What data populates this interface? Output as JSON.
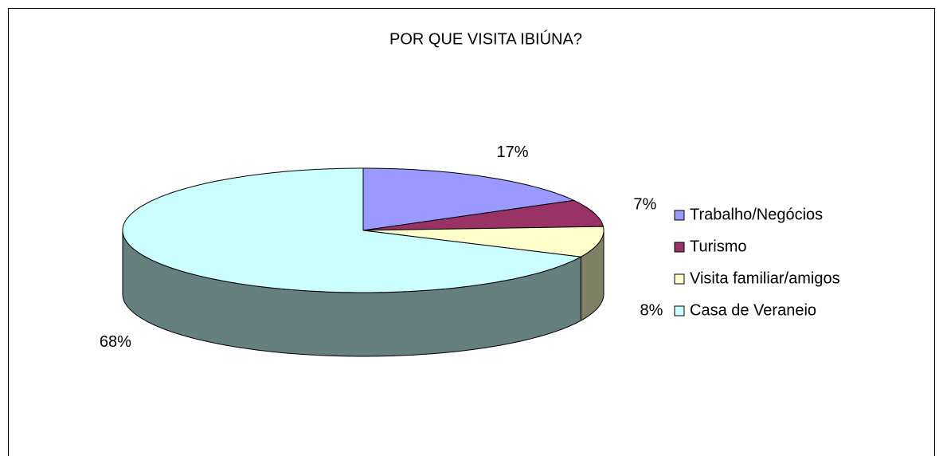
{
  "chart_data": {
    "type": "pie3d",
    "title": "POR QUE VISITA IBIÚNA?",
    "categories": [
      "Trabalho/Negócios",
      "Turismo",
      "Visita familiar/amigos",
      "Casa de Veraneio"
    ],
    "values": [
      17,
      7,
      8,
      68
    ],
    "value_labels": [
      "17%",
      "7%",
      "8%",
      "68%"
    ],
    "colors": [
      "#9999ff",
      "#993366",
      "#ffffcc",
      "#ccffff"
    ],
    "legend": "right"
  }
}
